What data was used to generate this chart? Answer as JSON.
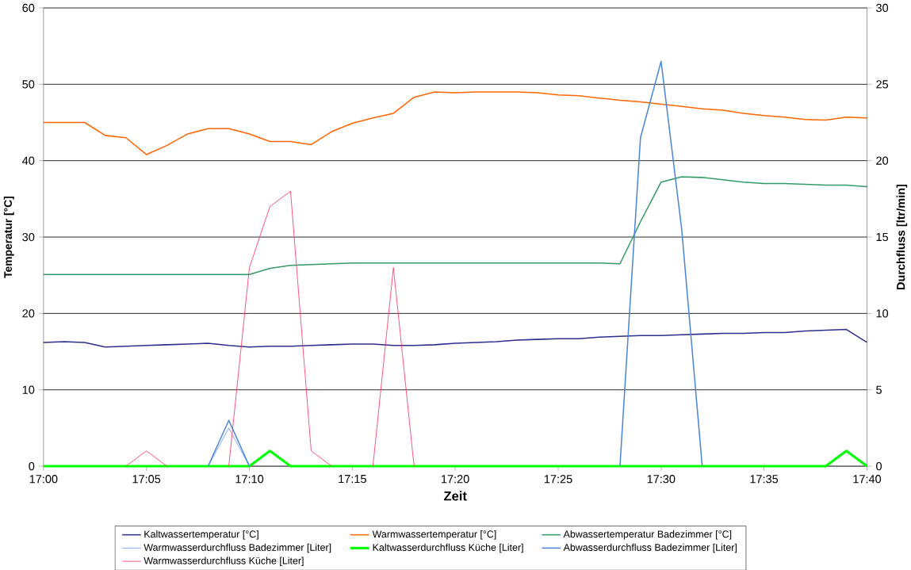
{
  "chart_data": {
    "type": "line",
    "xlabel": "Zeit",
    "ylabel": "Temperatur [°C]",
    "y2label": "Durchfluss [ltr/min]",
    "x": [
      17,
      17.0167,
      17.0333,
      17.05,
      17.0667,
      17.0833,
      17.1,
      17.1167,
      17.1333,
      17.15,
      17.1667,
      17.1833,
      17.2,
      17.2167,
      17.2333,
      17.25,
      17.2667,
      17.2833,
      17.3,
      17.3167,
      17.3333,
      17.35,
      17.3667,
      17.3833,
      17.4,
      17.4167,
      17.4333,
      17.45,
      17.4667,
      17.4833,
      17.5,
      17.5167,
      17.5333,
      17.55,
      17.5667,
      17.5833,
      17.6,
      17.6167,
      17.6333,
      17.65,
      17.6667
    ],
    "xlim": [
      17,
      17.6667
    ],
    "xticks": [
      {
        "value": 17,
        "label": "17:00"
      },
      {
        "value": 17.0833,
        "label": "17:05"
      },
      {
        "value": 17.1667,
        "label": "17:10"
      },
      {
        "value": 17.25,
        "label": "17:15"
      },
      {
        "value": 17.3333,
        "label": "17:20"
      },
      {
        "value": 17.4167,
        "label": "17:25"
      },
      {
        "value": 17.5,
        "label": "17:30"
      },
      {
        "value": 17.5833,
        "label": "17:35"
      },
      {
        "value": 17.6667,
        "label": "17:40"
      }
    ],
    "ylim": [
      0,
      60
    ],
    "yticks": [
      0,
      10,
      20,
      30,
      40,
      50,
      60
    ],
    "y2lim": [
      0,
      30
    ],
    "y2ticks": [
      0,
      5,
      10,
      15,
      20,
      25,
      30
    ],
    "grid": "y",
    "legend": "bottom",
    "marker": "none",
    "line_style": "solid",
    "series": [
      {
        "name": "Kaltwassertemperatur [°C]",
        "color": "#2e2e8f",
        "values": [
          16.2,
          16.3,
          16.2,
          15.6,
          15.7,
          15.8,
          15.9,
          16,
          16.1,
          15.8,
          15.6,
          15.7,
          15.7,
          15.8,
          15.9,
          16,
          16,
          15.8,
          15.8,
          15.9,
          16.1,
          16.2,
          16.3,
          16.5,
          16.6,
          16.7,
          16.7,
          16.9,
          17,
          17.1,
          17.1,
          17.2,
          17.3,
          17.4,
          17.4,
          17.5,
          17.5,
          17.7,
          17.8,
          17.9,
          16.2
        ]
      },
      {
        "name": "Warmwassertemperatur [°C]",
        "color": "#ff6600",
        "values": [
          45,
          45,
          45,
          43.3,
          43,
          40.8,
          42,
          43.5,
          44.2,
          44.2,
          43.5,
          42.5,
          42.5,
          42.1,
          43.8,
          44.9,
          45.6,
          46.2,
          48.3,
          49,
          48.9,
          49,
          49,
          49,
          48.9,
          48.6,
          48.5,
          48.2,
          47.9,
          47.7,
          47.4,
          47.1,
          46.8,
          46.6,
          46.2,
          45.9,
          45.7,
          45.4,
          45.3,
          45.7,
          45.6
        ]
      },
      {
        "name": "Abwassertemperatur Badezimmer  [°C]",
        "color": "#339966",
        "values": [
          25.1,
          25.1,
          25.1,
          25.1,
          25.1,
          25.1,
          25.1,
          25.1,
          25.1,
          25.1,
          25.1,
          25.9,
          26.3,
          26.4,
          26.5,
          26.6,
          26.6,
          26.6,
          26.6,
          26.6,
          26.6,
          26.6,
          26.6,
          26.6,
          26.6,
          26.6,
          26.6,
          26.6,
          26.5,
          32,
          37.2,
          37.9,
          37.8,
          37.5,
          37.2,
          37,
          37,
          36.9,
          36.8,
          36.8,
          36.6
        ]
      },
      {
        "name": "Warmwasserdurchfluss Badezimmer [Liter]",
        "color": "#6699ff",
        "axis": "y2",
        "values": [
          null,
          null,
          null,
          null,
          null,
          null,
          null,
          null,
          0,
          2.5,
          0,
          null,
          null,
          null,
          null,
          null,
          null,
          null,
          null,
          null,
          null,
          null,
          null,
          null,
          null,
          null,
          null,
          null,
          null,
          null,
          null,
          null,
          null,
          null,
          null,
          null,
          null,
          null,
          null,
          null,
          null
        ]
      },
      {
        "name": "Kaltwasserdurchfluss Küche [Liter]",
        "color": "#00ff00",
        "axis": "y2",
        "values": [
          0,
          0,
          0,
          0,
          0,
          0,
          0,
          0,
          0,
          0,
          0,
          1,
          0,
          0,
          0,
          0,
          0,
          0,
          0,
          0,
          0,
          0,
          0,
          0,
          0,
          0,
          0,
          0,
          0,
          0,
          0,
          0,
          0,
          0,
          0,
          0,
          0,
          0,
          0,
          1,
          0
        ]
      },
      {
        "name": "Abwasserdurchfluss Badezimmer  [Liter]",
        "color": "#4a86d8",
        "axis": "y2",
        "values": [
          null,
          null,
          null,
          null,
          null,
          null,
          null,
          null,
          0,
          3,
          0,
          null,
          null,
          null,
          null,
          null,
          null,
          null,
          null,
          null,
          null,
          null,
          null,
          null,
          null,
          null,
          null,
          null,
          0,
          21.5,
          26.5,
          15.5,
          0,
          null,
          null,
          null,
          null,
          null,
          null,
          null,
          null
        ]
      },
      {
        "name": "Warmwasserdurchfluss Küche [Liter]",
        "color": "#ff3366",
        "axis": "y2",
        "values": [
          null,
          null,
          null,
          null,
          0,
          1,
          0,
          null,
          null,
          0,
          13,
          17,
          18,
          1,
          0,
          null,
          0,
          13,
          0,
          null,
          null,
          null,
          null,
          null,
          null,
          null,
          null,
          null,
          null,
          null,
          null,
          null,
          null,
          null,
          null,
          null,
          null,
          null,
          null,
          null,
          null
        ]
      }
    ]
  }
}
